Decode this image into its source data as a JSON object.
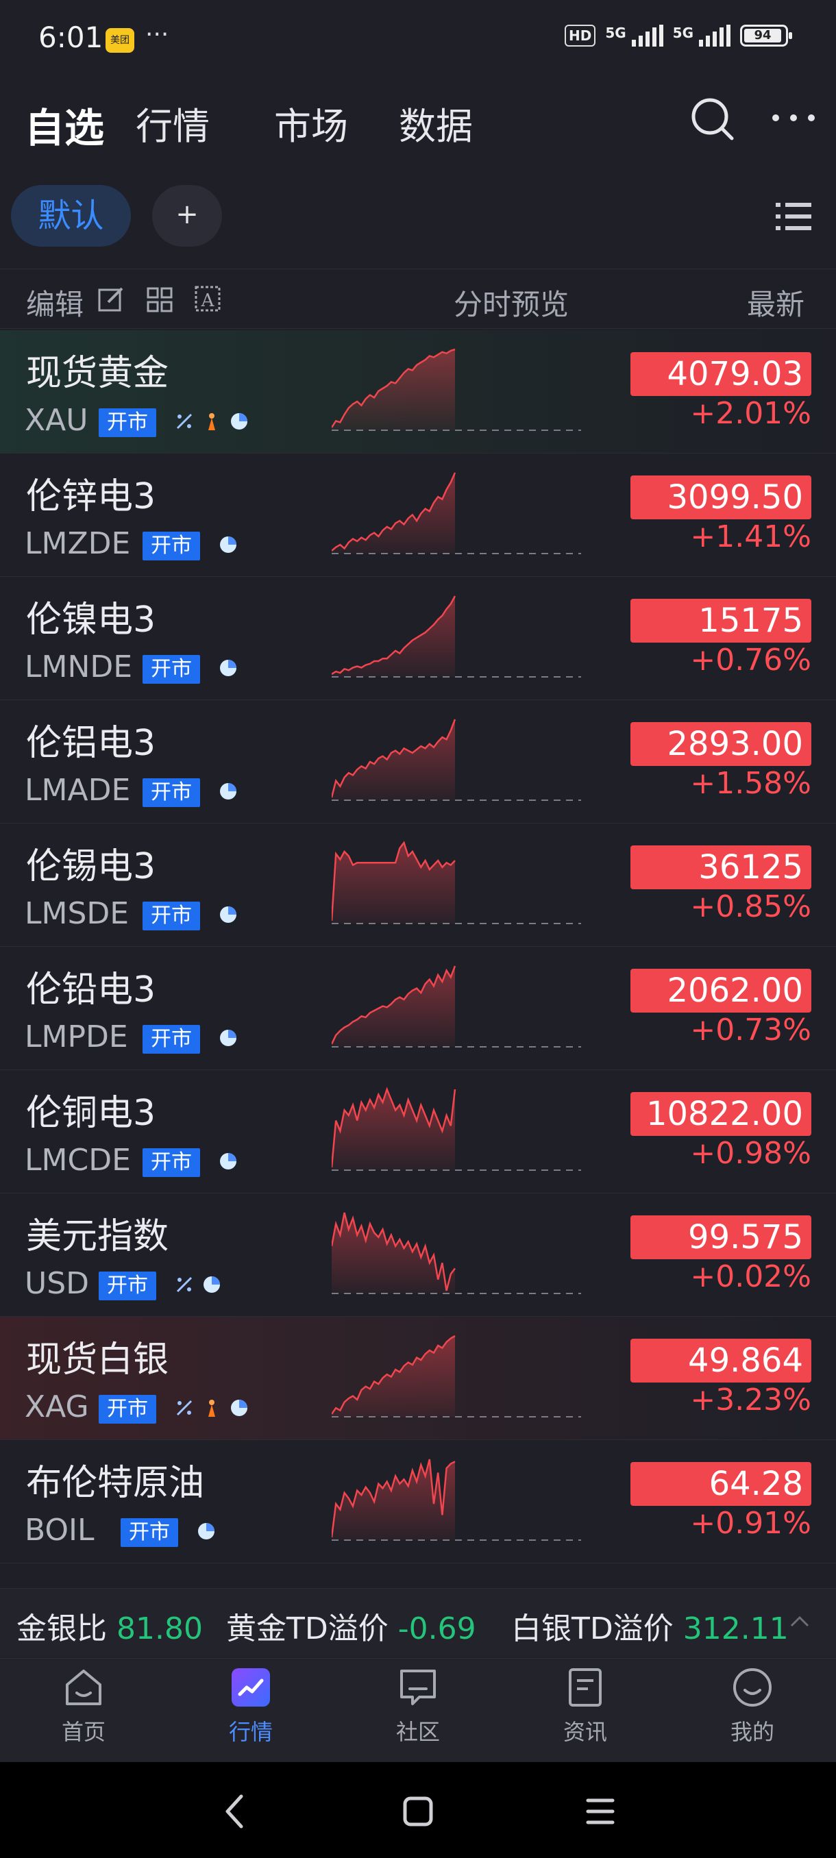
{
  "status_bar": {
    "time": "6:01",
    "app_badge": "美团",
    "more": "···",
    "hd": "HD",
    "network1": "5G",
    "network2": "5G",
    "battery": "94"
  },
  "top_nav": {
    "tabs": [
      "自选",
      "行情",
      "市场",
      "数据"
    ],
    "active": 0
  },
  "groups": {
    "default_label": "默认",
    "add_label": "+"
  },
  "list_header": {
    "edit_label": "编辑",
    "preview_label": "分时预览",
    "latest_label": "最新"
  },
  "quotes": [
    {
      "name": "现货黄金",
      "code": "XAU",
      "status": "开市",
      "price": "4079.03",
      "change": "+2.01%",
      "icons": [
        "percent-icon",
        "torch-icon",
        "pie-icon"
      ],
      "highlight": "green",
      "spark": [
        40,
        45,
        44,
        50,
        55,
        58,
        60,
        57,
        62,
        65,
        63,
        68,
        70,
        72,
        75,
        74,
        78,
        82,
        85,
        84,
        88,
        90,
        92,
        95,
        94,
        96,
        98,
        97,
        99,
        100
      ]
    },
    {
      "name": "伦锌电3",
      "code": "LMZDE",
      "status": "开市",
      "price": "3099.50",
      "change": "+1.41%",
      "icons": [
        "pie-icon"
      ],
      "highlight": "",
      "spark": [
        35,
        38,
        40,
        37,
        42,
        45,
        43,
        46,
        44,
        48,
        50,
        47,
        52,
        55,
        53,
        58,
        60,
        57,
        62,
        65,
        60,
        66,
        70,
        68,
        75,
        80,
        78,
        86,
        92,
        100
      ]
    },
    {
      "name": "伦镍电3",
      "code": "LMNDE",
      "status": "开市",
      "price": "15175",
      "change": "+0.76%",
      "icons": [
        "pie-icon"
      ],
      "highlight": "",
      "spark": [
        40,
        42,
        41,
        44,
        43,
        45,
        46,
        45,
        47,
        48,
        50,
        50,
        52,
        52,
        55,
        58,
        56,
        60,
        63,
        66,
        68,
        70,
        72,
        75,
        78,
        82,
        85,
        90,
        94,
        100
      ]
    },
    {
      "name": "伦铝电3",
      "code": "LMADE",
      "status": "开市",
      "price": "2893.00",
      "change": "+1.58%",
      "icons": [
        "pie-icon"
      ],
      "highlight": "",
      "spark": [
        30,
        45,
        40,
        48,
        52,
        50,
        55,
        58,
        56,
        62,
        60,
        65,
        67,
        64,
        70,
        72,
        69,
        74,
        72,
        70,
        73,
        76,
        74,
        78,
        75,
        80,
        84,
        82,
        90,
        100
      ]
    },
    {
      "name": "伦锡电3",
      "code": "LMSDE",
      "status": "开市",
      "price": "36125",
      "change": "+0.85%",
      "icons": [
        "pie-icon"
      ],
      "highlight": "",
      "spark": [
        30,
        90,
        85,
        92,
        88,
        80,
        82,
        82,
        82,
        82,
        82,
        82,
        82,
        82,
        82,
        82,
        95,
        100,
        88,
        92,
        85,
        78,
        84,
        76,
        80,
        84,
        78,
        82,
        80,
        84
      ]
    },
    {
      "name": "伦铅电3",
      "code": "LMPDE",
      "status": "开市",
      "price": "2062.00",
      "change": "+0.73%",
      "icons": [
        "pie-icon"
      ],
      "highlight": "",
      "spark": [
        30,
        38,
        42,
        45,
        47,
        50,
        52,
        55,
        54,
        58,
        60,
        62,
        64,
        63,
        66,
        70,
        72,
        70,
        75,
        78,
        80,
        76,
        84,
        88,
        82,
        92,
        86,
        96,
        90,
        100
      ]
    },
    {
      "name": "伦铜电3",
      "code": "LMCDE",
      "status": "开市",
      "price": "10822.00",
      "change": "+0.98%",
      "icons": [
        "pie-icon"
      ],
      "highlight": "",
      "spark": [
        70,
        88,
        84,
        92,
        90,
        94,
        88,
        95,
        92,
        96,
        93,
        98,
        95,
        100,
        96,
        92,
        94,
        90,
        96,
        92,
        88,
        94,
        90,
        86,
        92,
        88,
        84,
        90,
        86,
        100
      ]
    },
    {
      "name": "美元指数",
      "code": "USD",
      "status": "开市",
      "price": "99.575",
      "change": "+0.02%",
      "icons": [
        "percent-icon",
        "pie-icon"
      ],
      "highlight": "",
      "spark": [
        70,
        90,
        80,
        100,
        85,
        95,
        80,
        88,
        75,
        90,
        82,
        78,
        85,
        72,
        80,
        70,
        76,
        68,
        74,
        65,
        72,
        60,
        70,
        55,
        62,
        40,
        55,
        30,
        45,
        50
      ]
    },
    {
      "name": "现货白银",
      "code": "XAG",
      "status": "开市",
      "price": "49.864",
      "change": "+3.23%",
      "icons": [
        "percent-icon",
        "torch-icon",
        "pie-icon"
      ],
      "highlight": "red",
      "spark": [
        35,
        40,
        38,
        45,
        48,
        50,
        47,
        55,
        58,
        56,
        62,
        60,
        65,
        68,
        66,
        72,
        70,
        75,
        78,
        76,
        82,
        80,
        85,
        88,
        86,
        92,
        90,
        95,
        98,
        100
      ]
    },
    {
      "name": "布伦特原油",
      "code": "BOIL",
      "status": "开市",
      "price": "64.28",
      "change": "+0.91%",
      "icons": [
        "pie-icon"
      ],
      "highlight": "",
      "spark": [
        30,
        60,
        55,
        70,
        65,
        58,
        72,
        68,
        75,
        70,
        62,
        78,
        74,
        80,
        72,
        85,
        78,
        82,
        76,
        90,
        80,
        95,
        85,
        100,
        60,
        88,
        50,
        92,
        96,
        98
      ]
    }
  ],
  "ticker": {
    "items": [
      {
        "label": "金银比",
        "value": "81.80"
      },
      {
        "label": "黄金TD溢价",
        "value": "-0.69"
      },
      {
        "label": "白银TD溢价",
        "value": "312.11"
      }
    ]
  },
  "bottom_nav": {
    "items": [
      {
        "label": "首页",
        "icon": "home-icon"
      },
      {
        "label": "行情",
        "icon": "market-icon"
      },
      {
        "label": "社区",
        "icon": "community-icon"
      },
      {
        "label": "资讯",
        "icon": "news-icon"
      },
      {
        "label": "我的",
        "icon": "profile-icon"
      }
    ],
    "active": 1
  },
  "colors": {
    "accent": "#1f6ef0",
    "up": "#f2464f",
    "green": "#24c47a",
    "background": "#1e1f27"
  }
}
